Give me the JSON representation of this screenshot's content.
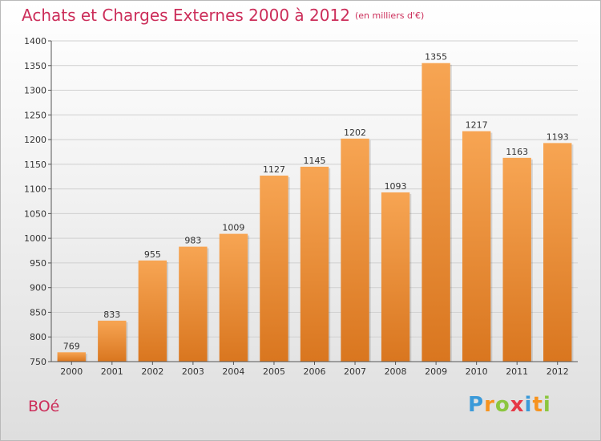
{
  "title": "Achats et Charges Externes 2000 à 2012",
  "subtitle": "(en milliers d'€)",
  "commune": "BOé",
  "logo": {
    "letters": [
      "P",
      "r",
      "o",
      "x",
      "i",
      "t",
      "i"
    ],
    "colors": [
      "#3b9ad9",
      "#f7931e",
      "#8cc63f",
      "#e63946",
      "#3b9ad9",
      "#f7931e",
      "#8cc63f"
    ]
  },
  "colors": {
    "bar": "#f39a3c",
    "text": "#cc2e5a"
  },
  "chart_data": {
    "type": "bar",
    "categories": [
      "2000",
      "2001",
      "2002",
      "2003",
      "2004",
      "2005",
      "2006",
      "2007",
      "2008",
      "2009",
      "2010",
      "2011",
      "2012"
    ],
    "values": [
      769,
      833,
      955,
      983,
      1009,
      1127,
      1145,
      1202,
      1093,
      1355,
      1217,
      1163,
      1193
    ],
    "ylim": [
      750,
      1400
    ],
    "yticks": [
      750,
      800,
      850,
      900,
      950,
      1000,
      1050,
      1100,
      1150,
      1200,
      1250,
      1300,
      1350,
      1400
    ],
    "grid": true
  }
}
